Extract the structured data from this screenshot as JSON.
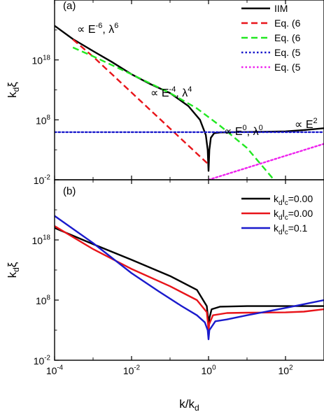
{
  "chart_data": [
    {
      "type": "line",
      "panel_label": "(a)",
      "xscale": "log",
      "yscale": "log",
      "xlim": [
        0.0001,
        1000
      ],
      "ylim": [
        0.01,
        1e+28
      ],
      "ylabel": {
        "base": "k",
        "sub": "d",
        "rest": "ξ"
      },
      "y_ticks": [
        {
          "value": 0.01,
          "base": "10",
          "exp": "-2"
        },
        {
          "value": 100000000.0,
          "base": "10",
          "exp": "8"
        },
        {
          "value": 1e+18,
          "base": "10",
          "exp": "18"
        }
      ],
      "legend": {
        "placement": "top-right",
        "entries": [
          {
            "label": "IIM",
            "color": "#000000",
            "style": "solid"
          },
          {
            "label": "Eq. (6",
            "color": "#e8141a",
            "style": "dashed"
          },
          {
            "label": "Eq. (6",
            "color": "#22e822",
            "style": "dashed"
          },
          {
            "label": "Eq. (5",
            "color": "#1a1acc",
            "style": "dotted"
          },
          {
            "label": "Eq. (5",
            "color": "#ee22ee",
            "style": "dotted"
          }
        ]
      },
      "annotations": [
        {
          "base": "∝ E",
          "exp1": "-6",
          "mid": ", λ",
          "exp2": "6"
        },
        {
          "base": "∝ E",
          "exp1": "-4",
          "mid": ", λ",
          "exp2": "4"
        },
        {
          "base": "∝ E",
          "exp1": "0",
          "mid": ", λ",
          "exp2": "0"
        },
        {
          "base": "∝ E",
          "exp1": "2",
          "mid": "",
          "exp2": ""
        }
      ],
      "series": [
        {
          "name": "IIM",
          "color": "#000000",
          "style": "solid",
          "points": [
            [
              0.0001,
              5e+23
            ],
            [
              0.0003,
              3e+21
            ],
            [
              0.001,
              3e+19
            ],
            [
              0.003,
              5e+17
            ],
            [
              0.01,
              4000000000000000.0
            ],
            [
              0.03,
              100000000000000.0
            ],
            [
              0.1,
              3000000000000.0
            ],
            [
              0.3,
              20000000000.0
            ],
            [
              0.6,
              100000000.0
            ],
            [
              0.85,
              300000.0
            ],
            [
              0.95,
              1000.0
            ],
            [
              1.0,
              0.3
            ],
            [
              1.05,
              1000.0
            ],
            [
              1.15,
              100000.0
            ],
            [
              1.4,
              600000.0
            ],
            [
              2,
              800000.0
            ],
            [
              5,
              900000.0
            ],
            [
              20,
              1000000.0
            ],
            [
              100,
              1200000.0
            ],
            [
              300,
              2000000.0
            ],
            [
              1000,
              4000000.0
            ]
          ]
        },
        {
          "name": "Eq. (6",
          "color": "#e8141a",
          "style": "dashed",
          "points": [
            [
              0.0003,
              2.6e+21
            ],
            [
              0.001,
              3.6e+18
            ],
            [
              0.01,
              3600000000000.0
            ],
            [
              0.1,
              3600000.0
            ],
            [
              1,
              3.6
            ]
          ]
        },
        {
          "name": "Eq. (6",
          "color": "#22e822",
          "style": "dashed",
          "points": [
            [
              0.0003,
              1.2e+20
            ],
            [
              0.001,
              4e+18
            ],
            [
              0.01,
              4000000000000000.0
            ],
            [
              0.1,
              3000000000000.0
            ],
            [
              0.5,
              8000000000.0
            ],
            [
              2,
              10000000.0
            ],
            [
              10,
              2000.0
            ],
            [
              50,
              0.01
            ]
          ]
        },
        {
          "name": "Eq. (5",
          "color": "#1a1acc",
          "style": "dotted",
          "points": [
            [
              0.0001,
              900000.0
            ],
            [
              1000,
              900000.0
            ]
          ]
        },
        {
          "name": "Eq. (5",
          "color": "#ee22ee",
          "style": "dotted",
          "points": [
            [
              1,
              0.01
            ],
            [
              10,
              1
            ],
            [
              100,
              100
            ],
            [
              1000,
              10000.0
            ]
          ]
        }
      ]
    },
    {
      "type": "line",
      "panel_label": "(b)",
      "xscale": "log",
      "yscale": "log",
      "xlim": [
        0.0001,
        1000
      ],
      "ylim": [
        0.01,
        1e+28
      ],
      "xlabel": {
        "base": "k/k",
        "sub": "d"
      },
      "ylabel": {
        "base": "k",
        "sub": "d",
        "rest": "ξ"
      },
      "x_ticks": [
        {
          "value": 0.0001,
          "base": "10",
          "exp": "-4"
        },
        {
          "value": 0.01,
          "base": "10",
          "exp": "-2"
        },
        {
          "value": 1,
          "base": "10",
          "exp": "0"
        },
        {
          "value": 100,
          "base": "10",
          "exp": "2"
        }
      ],
      "y_ticks": [
        {
          "value": 0.01,
          "base": "10",
          "exp": "-2"
        },
        {
          "value": 100000000.0,
          "base": "10",
          "exp": "8"
        },
        {
          "value": 1e+18,
          "base": "10",
          "exp": "18"
        }
      ],
      "legend": {
        "placement": "top-right",
        "entries": [
          {
            "k": "k",
            "ksub": "d",
            "l": "l",
            "lsub": "c",
            "val": "=0.00",
            "color": "#000000"
          },
          {
            "k": "k",
            "ksub": "d",
            "l": "l",
            "lsub": "c",
            "val": "=0.00",
            "color": "#e8141a"
          },
          {
            "k": "k",
            "ksub": "d",
            "l": "l",
            "lsub": "c",
            "val": "=0.1",
            "color": "#1a1acc"
          }
        ]
      },
      "series": [
        {
          "name": "k_d l_c=0.00 (black)",
          "color": "#000000",
          "style": "solid",
          "points": [
            [
              0.0001,
              1e+20
            ],
            [
              0.001,
              2e+17
            ],
            [
              0.01,
              500000000000000.0
            ],
            [
              0.1,
              1000000000000.0
            ],
            [
              0.5,
              5000000000.0
            ],
            [
              0.9,
              10000000.0
            ],
            [
              0.97,
              100000.0
            ],
            [
              1.0,
              1000.0
            ],
            [
              1.05,
              100000.0
            ],
            [
              1.2,
              3000000.0
            ],
            [
              2,
              8000000.0
            ],
            [
              10,
              10000000.0
            ],
            [
              100,
              10000000.0
            ],
            [
              1000,
              10000000.0
            ]
          ]
        },
        {
          "name": "k_d l_c=0.00 (red)",
          "color": "#e8141a",
          "style": "solid",
          "points": [
            [
              0.0001,
              2e+20
            ],
            [
              0.001,
              3e+16
            ],
            [
              0.01,
              15000000000000.0
            ],
            [
              0.1,
              20000000000.0
            ],
            [
              0.5,
              100000000.0
            ],
            [
              0.9,
              1000000.0
            ],
            [
              0.97,
              10000.0
            ],
            [
              1.0,
              300.0
            ],
            [
              1.04,
              10000.0
            ],
            [
              1.3,
              300000.0
            ],
            [
              3,
              700000.0
            ],
            [
              10,
              800000.0
            ],
            [
              100,
              900000.0
            ],
            [
              300,
              1200000.0
            ],
            [
              1000,
              3000000.0
            ]
          ]
        },
        {
          "name": "k_d l_c=0.1",
          "color": "#1a1acc",
          "style": "solid",
          "points": [
            [
              0.0001,
              1e+22
            ],
            [
              0.001,
              3e+17
            ],
            [
              0.01,
              3000000000000.0
            ],
            [
              0.05,
              3000000000.0
            ],
            [
              0.2,
              10000000.0
            ],
            [
              0.5,
              300000.0
            ],
            [
              0.8,
              20000.0
            ],
            [
              0.95,
              1000.0
            ],
            [
              1.0,
              30.0
            ],
            [
              1.05,
              1000.0
            ],
            [
              1.5,
              30000.0
            ],
            [
              3,
              60000.0
            ],
            [
              10,
              300000.0
            ],
            [
              100,
              5000000.0
            ],
            [
              1000,
              100000000.0
            ]
          ]
        }
      ]
    }
  ]
}
